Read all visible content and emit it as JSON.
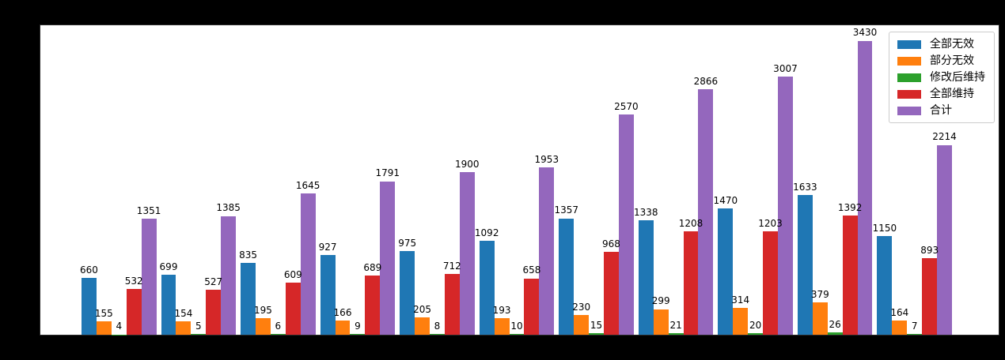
{
  "figure": {
    "background_color": "#000000",
    "plot_background_color": "#ffffff",
    "spine_color": "#2b2b2b",
    "bar_label_color": "#000000"
  },
  "chart_data": {
    "type": "bar",
    "title": "",
    "xlabel": "",
    "ylabel": "",
    "x_tick_labels_visible": false,
    "y_tick_labels_visible": false,
    "grid": false,
    "ylim": [
      0,
      3610
    ],
    "num_groups": 11,
    "legend_position": "upper right",
    "series": [
      {
        "name": "全部无效",
        "color": "#1f77b4",
        "values": [
          660,
          699,
          835,
          927,
          975,
          1092,
          1357,
          1338,
          1470,
          1633,
          1150
        ]
      },
      {
        "name": "部分无效",
        "color": "#ff7f0e",
        "values": [
          155,
          154,
          195,
          166,
          205,
          193,
          230,
          299,
          314,
          379,
          164
        ]
      },
      {
        "name": "修改后维持",
        "color": "#2ca02c",
        "values": [
          4,
          5,
          6,
          9,
          8,
          10,
          15,
          21,
          20,
          26,
          7
        ]
      },
      {
        "name": "全部维持",
        "color": "#d62728",
        "values": [
          532,
          527,
          609,
          689,
          712,
          658,
          968,
          1208,
          1203,
          1392,
          893
        ]
      },
      {
        "name": "合计",
        "color": "#9467bd",
        "values": [
          1351,
          1385,
          1645,
          1791,
          1900,
          1953,
          2570,
          2866,
          3007,
          3430,
          2214
        ]
      }
    ],
    "bar_labels_shown": true
  }
}
